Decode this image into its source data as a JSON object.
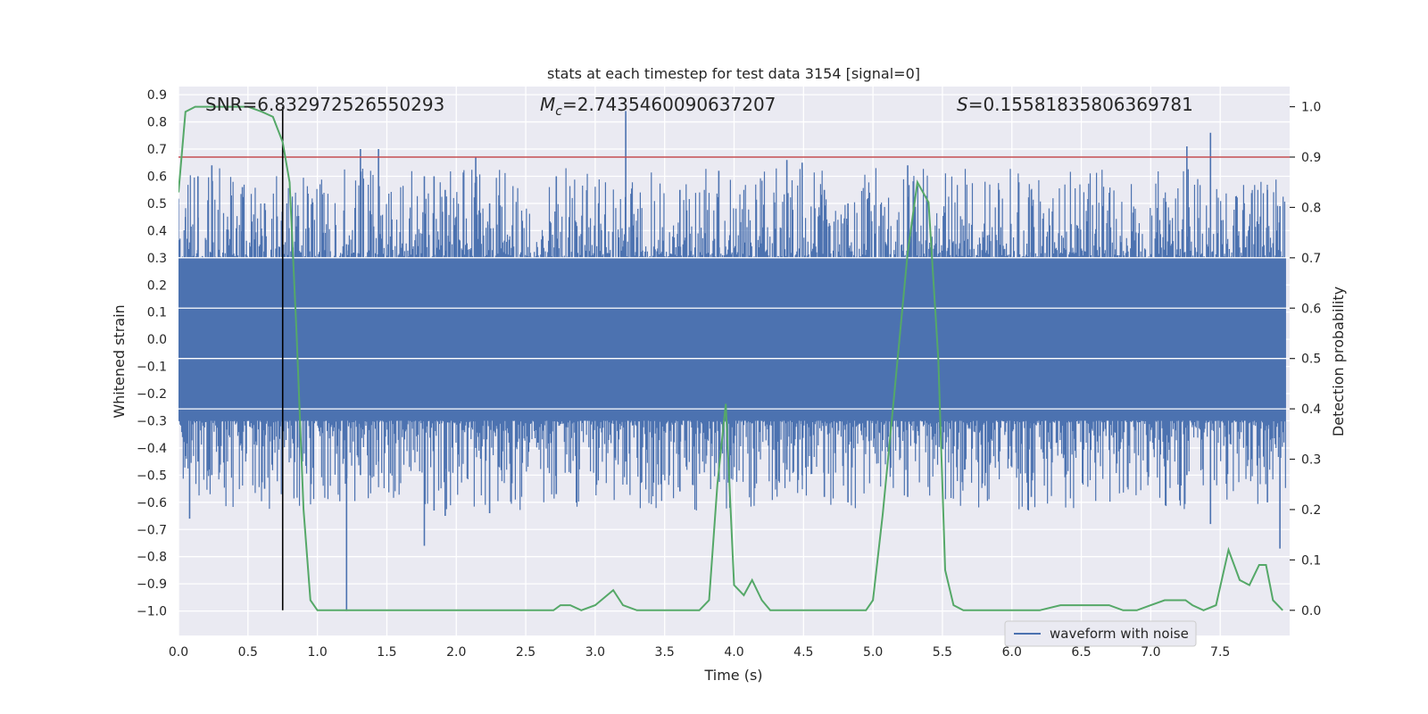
{
  "chart_data": {
    "type": "line",
    "title": "stats at each timestep for test data 3154 [signal=0]",
    "xlabel": "Time (s)",
    "ylabel_left": "Whitened strain",
    "ylabel_right": "Detection probability",
    "xlim": [
      0.0,
      8.0
    ],
    "ylim_left": [
      -1.09,
      0.93
    ],
    "ylim_right": [
      -0.05,
      1.04
    ],
    "x_ticks": [
      "0.0",
      "0.5",
      "1.0",
      "1.5",
      "2.0",
      "2.5",
      "3.0",
      "3.5",
      "4.0",
      "4.5",
      "5.0",
      "5.5",
      "6.0",
      "6.5",
      "7.0",
      "7.5"
    ],
    "y_ticks_left": [
      "0.9",
      "0.8",
      "0.7",
      "0.6",
      "0.5",
      "0.4",
      "0.3",
      "0.2",
      "0.1",
      "0.0",
      "−0.1",
      "−0.2",
      "−0.3",
      "−0.4",
      "−0.5",
      "−0.6",
      "−0.7",
      "−0.8",
      "−0.9",
      "−1.0"
    ],
    "y_ticks_right": [
      "1.0",
      "0.9",
      "0.8",
      "0.7",
      "0.6",
      "0.5",
      "0.4",
      "0.3",
      "0.2",
      "0.1",
      "0.0"
    ],
    "annotations": {
      "snr": "SNR=6.832972526550293",
      "mc_prefix": "M",
      "mc_sub": "c",
      "mc_value": "=2.7435460090637207",
      "s_prefix": "S",
      "s_value": "=0.15581835806369781"
    },
    "threshold_right": 0.9,
    "marker_time": 0.75,
    "legend": [
      "waveform with noise"
    ],
    "waveform": {
      "name": "waveform with noise",
      "color": "#4c72b0",
      "band": [
        -0.3,
        0.3
      ],
      "spikes": [
        {
          "t": 0.05,
          "min": -0.43,
          "max": 0.45
        },
        {
          "t": 0.08,
          "min": -0.66,
          "max": 0.3
        },
        {
          "t": 0.14,
          "min": -0.45,
          "max": 0.6
        },
        {
          "t": 0.24,
          "min": -0.5,
          "max": 0.64
        },
        {
          "t": 0.46,
          "min": -0.4,
          "max": 0.56
        },
        {
          "t": 0.62,
          "min": -0.55,
          "max": 0.5
        },
        {
          "t": 1.21,
          "min": -1.0,
          "max": 0.35
        },
        {
          "t": 1.31,
          "min": -0.5,
          "max": 0.7
        },
        {
          "t": 1.44,
          "min": -0.45,
          "max": 0.7
        },
        {
          "t": 1.77,
          "min": -0.76,
          "max": 0.6
        },
        {
          "t": 1.84,
          "min": -0.63,
          "max": 0.6
        },
        {
          "t": 1.92,
          "min": -0.65,
          "max": 0.55
        },
        {
          "t": 2.14,
          "min": -0.4,
          "max": 0.67
        },
        {
          "t": 2.24,
          "min": -0.64,
          "max": 0.5
        },
        {
          "t": 2.72,
          "min": -0.57,
          "max": 0.6
        },
        {
          "t": 3.22,
          "min": -0.45,
          "max": 0.84
        },
        {
          "t": 3.61,
          "min": -0.56,
          "max": 0.55
        },
        {
          "t": 3.89,
          "min": -0.5,
          "max": 0.62
        },
        {
          "t": 4.38,
          "min": -0.48,
          "max": 0.66
        },
        {
          "t": 4.49,
          "min": -0.5,
          "max": 0.65
        },
        {
          "t": 4.65,
          "min": -0.58,
          "max": 0.55
        },
        {
          "t": 4.82,
          "min": -0.6,
          "max": 0.5
        },
        {
          "t": 5.25,
          "min": -0.58,
          "max": 0.64
        },
        {
          "t": 6.14,
          "min": -0.58,
          "max": 0.55
        },
        {
          "t": 7.26,
          "min": -0.5,
          "max": 0.71
        },
        {
          "t": 7.43,
          "min": -0.68,
          "max": 0.76
        },
        {
          "t": 7.84,
          "min": -0.6,
          "max": 0.55
        },
        {
          "t": 7.93,
          "min": -0.77,
          "max": 0.49
        }
      ]
    },
    "probability": {
      "name": "Detection probability",
      "color": "#55a868",
      "t": [
        0.0,
        0.05,
        0.12,
        0.2,
        0.3,
        0.4,
        0.5,
        0.6,
        0.68,
        0.75,
        0.8,
        0.85,
        0.9,
        0.95,
        1.0,
        1.1,
        1.2,
        1.3,
        1.4,
        1.5,
        1.8,
        2.0,
        2.2,
        2.5,
        2.7,
        2.75,
        2.82,
        2.9,
        3.0,
        3.13,
        3.2,
        3.3,
        3.4,
        3.55,
        3.75,
        3.82,
        3.88,
        3.94,
        4.0,
        4.07,
        4.13,
        4.2,
        4.26,
        4.35,
        4.45,
        4.55,
        4.7,
        4.9,
        4.95,
        5.0,
        5.07,
        5.15,
        5.25,
        5.32,
        5.4,
        5.47,
        5.52,
        5.58,
        5.65,
        5.8,
        6.0,
        6.2,
        6.35,
        6.45,
        6.55,
        6.7,
        6.8,
        6.9,
        7.0,
        7.1,
        7.25,
        7.3,
        7.38,
        7.47,
        7.56,
        7.64,
        7.71,
        7.78,
        7.83,
        7.88,
        7.95
      ],
      "p": [
        0.83,
        0.99,
        1.0,
        1.0,
        1.0,
        1.0,
        1.0,
        0.99,
        0.98,
        0.93,
        0.85,
        0.55,
        0.2,
        0.02,
        0.0,
        0.0,
        0.0,
        0.0,
        0.0,
        0.0,
        0.0,
        0.0,
        0.0,
        0.0,
        0.0,
        0.01,
        0.01,
        0.0,
        0.01,
        0.04,
        0.01,
        0.0,
        0.0,
        0.0,
        0.0,
        0.02,
        0.25,
        0.41,
        0.05,
        0.03,
        0.06,
        0.02,
        0.0,
        0.0,
        0.0,
        0.0,
        0.0,
        0.0,
        0.0,
        0.02,
        0.19,
        0.42,
        0.71,
        0.85,
        0.81,
        0.5,
        0.08,
        0.01,
        0.0,
        0.0,
        0.0,
        0.0,
        0.01,
        0.01,
        0.01,
        0.01,
        0.0,
        0.0,
        0.01,
        0.02,
        0.02,
        0.01,
        0.0,
        0.01,
        0.12,
        0.06,
        0.05,
        0.09,
        0.09,
        0.02,
        0.0
      ]
    }
  }
}
